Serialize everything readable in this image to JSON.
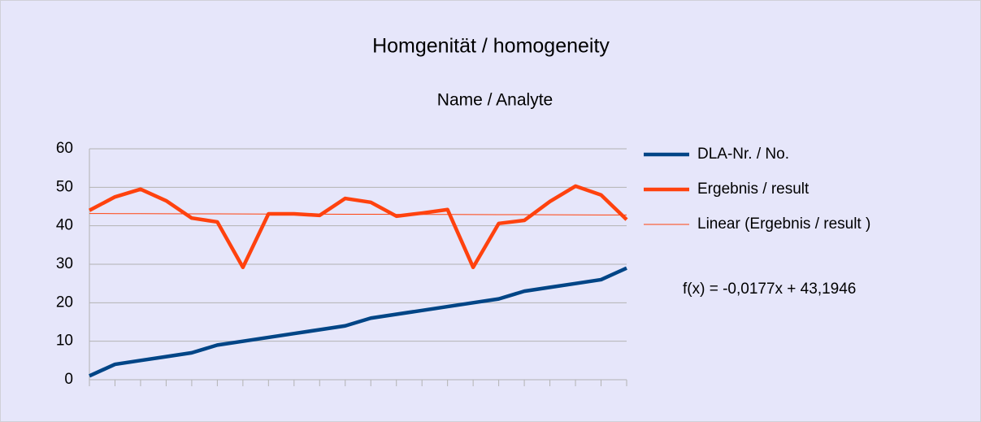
{
  "chart_data": {
    "type": "line",
    "title": "Homgenität / homogeneity",
    "subtitle": "Name / Analyte",
    "categories": [
      null,
      null,
      null,
      null,
      null,
      null,
      null,
      null,
      null,
      null,
      null,
      null,
      null,
      null,
      null,
      null,
      null,
      null,
      null,
      null,
      null,
      null
    ],
    "series": [
      {
        "name": "DLA-Nr. / No.",
        "color": "#004586",
        "values": [
          1,
          4,
          5,
          6,
          7,
          9,
          10,
          11,
          12,
          13,
          14,
          16,
          17,
          18,
          19,
          20,
          21,
          23,
          24,
          25,
          26,
          29
        ]
      },
      {
        "name": "Ergebnis / result",
        "color": "#ff420e",
        "values": [
          44.0,
          47.5,
          49.5,
          46.5,
          42.0,
          41.0,
          29.2,
          43.1,
          43.1,
          42.7,
          47.1,
          46.1,
          42.5,
          43.3,
          44.2,
          29.2,
          40.6,
          41.4,
          46.3,
          50.3,
          48.0,
          41.6
        ]
      },
      {
        "name": "Linear (Ergebnis / result )",
        "color": "#ff420e",
        "trendline": true,
        "values": [
          43.18,
          43.16,
          43.14,
          43.12,
          43.11,
          43.09,
          43.07,
          43.05,
          43.03,
          43.02,
          43.0,
          42.98,
          42.96,
          42.95,
          42.93,
          42.91,
          42.89,
          42.88,
          42.86,
          42.84,
          42.82,
          42.8
        ]
      }
    ],
    "annotation": "f(x) = -0,0177x + 43,1946",
    "ylim": [
      0,
      60
    ],
    "yticks": [
      0,
      10,
      20,
      30,
      40,
      50,
      60
    ],
    "grid": true,
    "legend": "right"
  }
}
